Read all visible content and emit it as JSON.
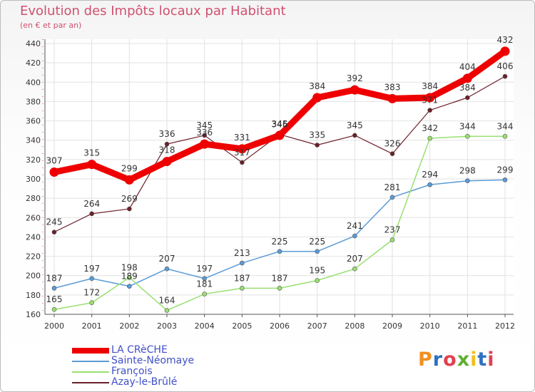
{
  "title": "Evolution des Impôts locaux par Habitant",
  "subtitle": "(en € et par an)",
  "brand": {
    "text": "Proxiti",
    "colors": [
      "#f09020",
      "#3070c0",
      "#e04050",
      "#60b030",
      "#f0c020",
      "#3070c0",
      "#e04050"
    ]
  },
  "chart_data": {
    "type": "line",
    "title": "Evolution des Impôts locaux par Habitant",
    "subtitle": "(en € et par an)",
    "x": [
      "2000",
      "2001",
      "2002",
      "2003",
      "2004",
      "2005",
      "2006",
      "2007",
      "2008",
      "2009",
      "2010",
      "2011",
      "2012"
    ],
    "ylim": [
      160,
      440
    ],
    "yticks": [
      160,
      180,
      200,
      220,
      240,
      260,
      280,
      300,
      320,
      340,
      360,
      380,
      400,
      420,
      440
    ],
    "grid": true,
    "series": [
      {
        "name": "LA CRèCHE",
        "color": "#ee0000",
        "width": 9,
        "values": [
          307,
          315,
          299,
          318,
          336,
          331,
          345,
          384,
          392,
          383,
          384,
          404,
          432
        ]
      },
      {
        "name": "Sainte-Néomaye",
        "color": "#5a9bd5",
        "width": 1.5,
        "values": [
          187,
          197,
          189,
          207,
          197,
          213,
          225,
          225,
          241,
          281,
          294,
          298,
          299
        ]
      },
      {
        "name": "François",
        "color": "#98e070",
        "width": 1.5,
        "values": [
          165,
          172,
          198,
          164,
          181,
          187,
          187,
          195,
          207,
          237,
          342,
          344,
          344
        ]
      },
      {
        "name": "Azay-le-Brûlé",
        "color": "#6b1f2a",
        "width": 1.2,
        "values": [
          245,
          264,
          269,
          336,
          345,
          317,
          346,
          335,
          345,
          326,
          371,
          384,
          406
        ]
      }
    ]
  }
}
